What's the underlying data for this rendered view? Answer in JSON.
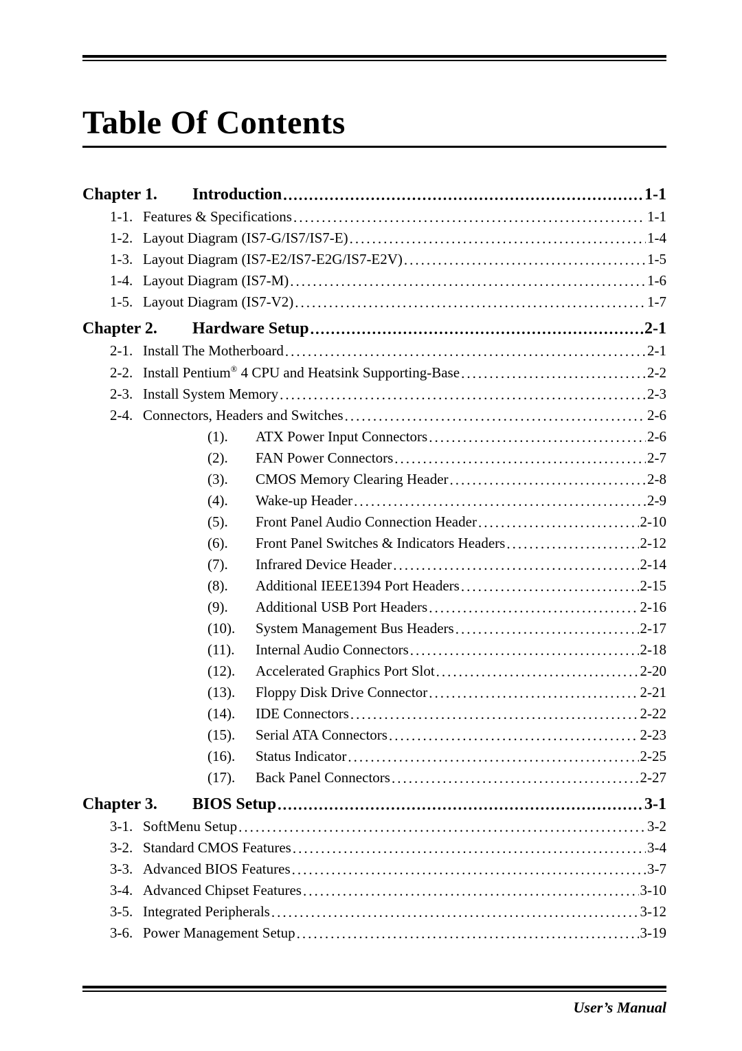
{
  "doc_title": "Table Of Contents",
  "footer": "User’s Manual",
  "leader_glyph": ".",
  "chapters": [
    {
      "label": "Chapter 1.",
      "title": "Introduction",
      "page": "1-1",
      "sections": [
        {
          "label": "1-1.",
          "title": "Features & Specifications",
          "page": "1-1"
        },
        {
          "label": "1-2.",
          "title": "Layout Diagram (IS7-G/IS7/IS7-E)",
          "page": "1-4"
        },
        {
          "label": "1-3.",
          "title": "Layout Diagram (IS7-E2/IS7-E2G/IS7-E2V)",
          "page": "1-5"
        },
        {
          "label": "1-4.",
          "title": "Layout Diagram (IS7-M)",
          "page": "1-6"
        },
        {
          "label": "1-5.",
          "title": "Layout Diagram (IS7-V2)",
          "page": "1-7"
        }
      ]
    },
    {
      "label": "Chapter 2.",
      "title": "Hardware Setup",
      "page": "2-1",
      "sections": [
        {
          "label": "2-1.",
          "title": "Install The Motherboard",
          "page": "2-1"
        },
        {
          "label": "2-2.",
          "title_html": "Install Pentium<sup>®</sup> 4 CPU and Heatsink Supporting-Base",
          "title": "Install Pentium® 4 CPU and Heatsink Supporting-Base",
          "page": "2-2"
        },
        {
          "label": "2-3.",
          "title": "Install System Memory",
          "page": "2-3"
        },
        {
          "label": "2-4.",
          "title": "Connectors, Headers and Switches",
          "page": "2-6",
          "subs": [
            {
              "label": "(1).",
              "title": "ATX Power Input Connectors",
              "page": "2-6"
            },
            {
              "label": "(2).",
              "title": "FAN Power Connectors",
              "page": "2-7"
            },
            {
              "label": "(3).",
              "title": "CMOS Memory Clearing Header",
              "page": "2-8"
            },
            {
              "label": "(4).",
              "title": "Wake-up Header",
              "page": "2-9"
            },
            {
              "label": "(5).",
              "title": "Front Panel Audio Connection Header",
              "page": "2-10"
            },
            {
              "label": "(6).",
              "title": "Front Panel Switches & Indicators Headers",
              "page": "2-12"
            },
            {
              "label": "(7).",
              "title": "Infrared Device Header",
              "page": "2-14"
            },
            {
              "label": "(8).",
              "title": "Additional IEEE1394 Port Headers",
              "page": "2-15"
            },
            {
              "label": "(9).",
              "title": "Additional USB Port Headers",
              "page": "2-16"
            },
            {
              "label": "(10).",
              "title": "System Management Bus Headers",
              "page": "2-17"
            },
            {
              "label": "(11).",
              "title": "Internal Audio Connectors",
              "page": "2-18"
            },
            {
              "label": "(12).",
              "title": "Accelerated Graphics Port Slot",
              "page": "2-20"
            },
            {
              "label": "(13).",
              "title": "Floppy Disk Drive Connector",
              "page": "2-21"
            },
            {
              "label": "(14).",
              "title": "IDE Connectors",
              "page": "2-22"
            },
            {
              "label": "(15).",
              "title": "Serial ATA Connectors",
              "page": "2-23"
            },
            {
              "label": "(16).",
              "title": "Status Indicator",
              "page": "2-25"
            },
            {
              "label": "(17).",
              "title": "Back Panel Connectors",
              "page": "2-27"
            }
          ]
        }
      ]
    },
    {
      "label": "Chapter 3.",
      "title": "BIOS Setup",
      "page": "3-1",
      "sections": [
        {
          "label": "3-1.",
          "title": "SoftMenu Setup",
          "page": "3-2"
        },
        {
          "label": "3-2.",
          "title": "Standard CMOS Features",
          "page": "3-4"
        },
        {
          "label": "3-3.",
          "title": "Advanced BIOS Features",
          "page": "3-7"
        },
        {
          "label": "3-4.",
          "title": "Advanced Chipset Features",
          "page": "3-10"
        },
        {
          "label": "3-5.",
          "title": "Integrated Peripherals",
          "page": "3-12"
        },
        {
          "label": "3-6.",
          "title": "Power Management Setup",
          "page": "3-19"
        }
      ]
    }
  ]
}
